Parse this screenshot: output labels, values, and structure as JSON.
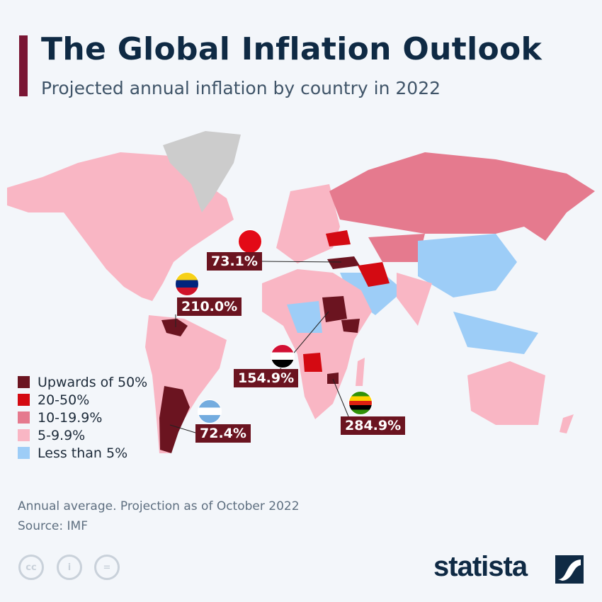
{
  "header": {
    "title": "The Global Inflation Outlook",
    "subtitle": "Projected annual inflation by country in 2022"
  },
  "legend": [
    {
      "label": "Upwards of 50%",
      "color": "#6b1420"
    },
    {
      "label": "20-50%",
      "color": "#d40a12"
    },
    {
      "label": "10-19.9%",
      "color": "#e57a8e"
    },
    {
      "label": "5-9.9%",
      "color": "#f9b6c4"
    },
    {
      "label": "Less than 5%",
      "color": "#9dcdf7"
    }
  ],
  "no_data_color": "#cccccc",
  "callouts": [
    {
      "country": "Turkey",
      "value": "73.1%",
      "flag": "turkey-flag"
    },
    {
      "country": "Venezuela",
      "value": "210.0%",
      "flag": "venezuela-flag"
    },
    {
      "country": "Sudan",
      "value": "154.9%",
      "flag": "sudan-flag"
    },
    {
      "country": "Zimbabwe",
      "value": "284.9%",
      "flag": "zimbabwe-flag"
    },
    {
      "country": "Argentina",
      "value": "72.4%",
      "flag": "argentina-flag"
    }
  ],
  "footer": {
    "note": "Annual average. Projection as of October 2022",
    "source": "Source: IMF",
    "brand": "statista"
  }
}
